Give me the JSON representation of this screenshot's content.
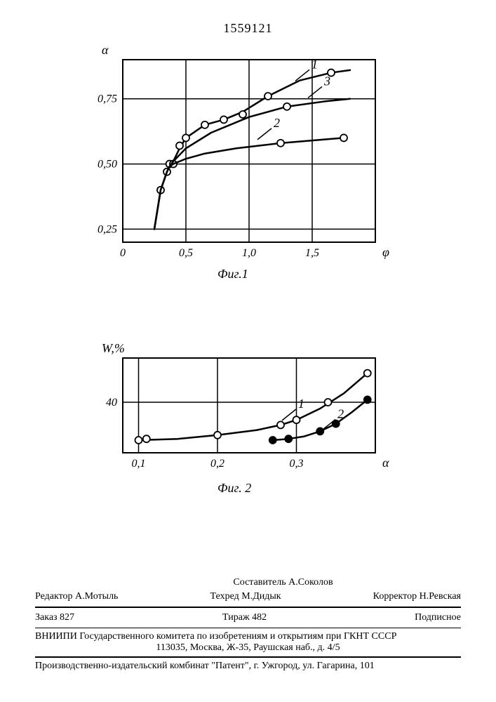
{
  "patent_number": "1559121",
  "fig1": {
    "type": "line",
    "caption": "Фиг.1",
    "x_label": "φ",
    "y_label": "α",
    "xlim": [
      0,
      2.0
    ],
    "ylim": [
      0.2,
      0.9
    ],
    "xticks": [
      0,
      0.5,
      1.0,
      1.5
    ],
    "xtick_labels": [
      "0",
      "0,5",
      "1,0",
      "1,5"
    ],
    "yticks": [
      0.25,
      0.5,
      0.75
    ],
    "ytick_labels": [
      "0,25",
      "0,50",
      "0,75"
    ],
    "grid_color": "#000000",
    "background": "#ffffff",
    "line_width": 2.5,
    "marker_size": 10,
    "marker_stroke": "#000000",
    "marker_fill": "#ffffff",
    "series": [
      {
        "id": "1",
        "label_x": 1.45,
        "label_y": 0.84,
        "points": [
          [
            0.25,
            0.25
          ],
          [
            0.3,
            0.4
          ],
          [
            0.35,
            0.47
          ],
          [
            0.37,
            0.49
          ],
          [
            0.4,
            0.51
          ],
          [
            0.45,
            0.56
          ],
          [
            0.5,
            0.6
          ],
          [
            0.65,
            0.65
          ],
          [
            0.8,
            0.67
          ],
          [
            0.95,
            0.7
          ],
          [
            1.15,
            0.76
          ],
          [
            1.4,
            0.82
          ],
          [
            1.65,
            0.85
          ],
          [
            1.8,
            0.86
          ]
        ],
        "markers": [
          [
            0.3,
            0.4
          ],
          [
            0.35,
            0.47
          ],
          [
            0.37,
            0.5
          ],
          [
            0.4,
            0.5
          ],
          [
            0.45,
            0.57
          ],
          [
            0.5,
            0.6
          ],
          [
            0.65,
            0.65
          ],
          [
            0.8,
            0.67
          ],
          [
            0.95,
            0.69
          ],
          [
            1.15,
            0.76
          ],
          [
            1.65,
            0.85
          ]
        ]
      },
      {
        "id": "2",
        "label_x": 1.15,
        "label_y": 0.615,
        "points": [
          [
            0.25,
            0.25
          ],
          [
            0.3,
            0.4
          ],
          [
            0.35,
            0.47
          ],
          [
            0.37,
            0.49
          ],
          [
            0.4,
            0.5
          ],
          [
            0.5,
            0.52
          ],
          [
            0.65,
            0.54
          ],
          [
            0.9,
            0.56
          ],
          [
            1.25,
            0.58
          ],
          [
            1.75,
            0.6
          ]
        ],
        "markers": [
          [
            1.25,
            0.58
          ],
          [
            1.75,
            0.6
          ]
        ]
      },
      {
        "id": "3",
        "label_x": 1.55,
        "label_y": 0.775,
        "points": [
          [
            0.25,
            0.25
          ],
          [
            0.3,
            0.4
          ],
          [
            0.35,
            0.47
          ],
          [
            0.37,
            0.49
          ],
          [
            0.4,
            0.51
          ],
          [
            0.5,
            0.56
          ],
          [
            0.7,
            0.62
          ],
          [
            1.0,
            0.68
          ],
          [
            1.3,
            0.72
          ],
          [
            1.6,
            0.74
          ],
          [
            1.8,
            0.75
          ]
        ],
        "markers": [
          [
            1.3,
            0.72
          ]
        ]
      }
    ]
  },
  "fig2": {
    "type": "line",
    "caption": "Фиг. 2",
    "x_label": "α",
    "y_label": "W,%",
    "xlim": [
      0.08,
      0.4
    ],
    "ylim": [
      0,
      75
    ],
    "xticks": [
      0.1,
      0.2,
      0.3
    ],
    "xtick_labels": [
      "0,1",
      "0,2",
      "0,3"
    ],
    "yticks": [
      40
    ],
    "ytick_labels": [
      "40"
    ],
    "grid_color": "#000000",
    "background": "#ffffff",
    "line_width": 2.5,
    "marker_size": 10,
    "series": [
      {
        "id": "1",
        "label_x": 0.295,
        "label_y": 30,
        "marker_fill": "#ffffff",
        "points": [
          [
            0.1,
            10
          ],
          [
            0.15,
            11
          ],
          [
            0.2,
            14
          ],
          [
            0.25,
            18
          ],
          [
            0.28,
            22
          ],
          [
            0.3,
            26
          ],
          [
            0.33,
            35
          ],
          [
            0.36,
            47
          ],
          [
            0.39,
            63
          ]
        ],
        "markers": [
          [
            0.1,
            10
          ],
          [
            0.11,
            11
          ],
          [
            0.2,
            14
          ],
          [
            0.28,
            22
          ],
          [
            0.3,
            26
          ],
          [
            0.34,
            40
          ],
          [
            0.39,
            63
          ]
        ]
      },
      {
        "id": "2",
        "label_x": 0.345,
        "label_y": 22,
        "marker_fill": "#000000",
        "points": [
          [
            0.27,
            10
          ],
          [
            0.29,
            11
          ],
          [
            0.31,
            13
          ],
          [
            0.33,
            17
          ],
          [
            0.35,
            23
          ],
          [
            0.37,
            32
          ],
          [
            0.39,
            42
          ]
        ],
        "markers": [
          [
            0.27,
            10
          ],
          [
            0.29,
            11
          ],
          [
            0.33,
            17
          ],
          [
            0.35,
            23
          ],
          [
            0.39,
            42
          ]
        ]
      }
    ]
  },
  "footer": {
    "row1": {
      "left": "Составитель А.Соколов",
      "center": "",
      "right": ""
    },
    "row2": {
      "left": "Редактор А.Мотыль",
      "center": "Техред М.Дидык",
      "right": "Корректор Н.Ревская"
    },
    "row3": {
      "left": "Заказ 827",
      "center": "Тираж 482",
      "right": "Подписное"
    },
    "org_line1": "ВНИИПИ Государственного комитета по изобретениям и открытиям при ГКНТ СССР",
    "org_line2": "113035, Москва, Ж-35, Раушская наб., д. 4/5",
    "address": "Производственно-издательский комбинат \"Патент\", г. Ужгород, ул. Гагарина, 101"
  }
}
